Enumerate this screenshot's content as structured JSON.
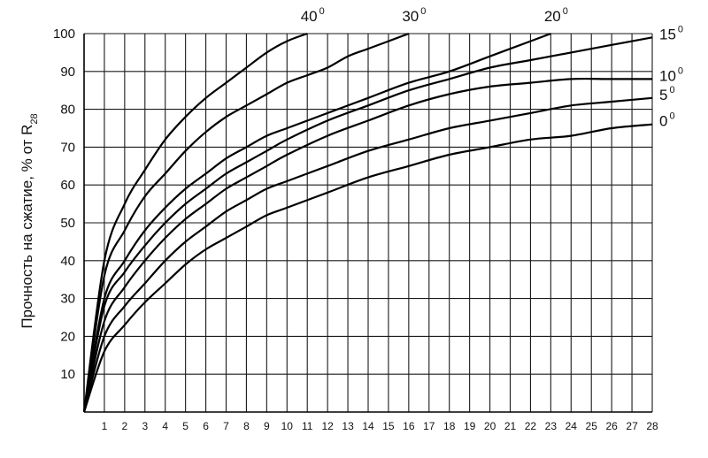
{
  "chart_data": {
    "type": "line",
    "title": "",
    "xlabel": "",
    "ylabel": "Прочность на сжатие, % от R",
    "ylabel_subscript": "28",
    "xlim": [
      0,
      28
    ],
    "ylim": [
      0,
      100
    ],
    "x_ticks": [
      "1",
      "2",
      "3",
      "4",
      "5",
      "6",
      "7",
      "8",
      "9",
      "10",
      "11",
      "12",
      "13",
      "14",
      "15",
      "16",
      "17",
      "18",
      "19",
      "20",
      "21",
      "22",
      "23",
      "24",
      "25",
      "26",
      "27",
      "28"
    ],
    "y_ticks": [
      "10",
      "20",
      "30",
      "40",
      "50",
      "60",
      "70",
      "80",
      "90",
      "100"
    ],
    "grid": true,
    "legend": "none",
    "series": [
      {
        "name": "40",
        "degree_mark": "0",
        "x": [
          0,
          1,
          2,
          3,
          4,
          5,
          6,
          7,
          8,
          9,
          10,
          11
        ],
        "y": [
          0,
          40,
          55,
          64,
          72,
          78,
          83,
          87,
          91,
          95,
          98,
          100
        ]
      },
      {
        "name": "30",
        "degree_mark": "0",
        "x": [
          0,
          1,
          2,
          3,
          4,
          5,
          6,
          7,
          8,
          9,
          10,
          11,
          12,
          13,
          14,
          15,
          16
        ],
        "y": [
          0,
          36,
          48,
          57,
          63,
          69,
          74,
          78,
          81,
          84,
          87,
          89,
          91,
          94,
          96,
          98,
          100
        ]
      },
      {
        "name": "20",
        "degree_mark": "0",
        "x": [
          0,
          1,
          2,
          3,
          4,
          5,
          6,
          7,
          8,
          9,
          10,
          12,
          14,
          16,
          18,
          20,
          22,
          23
        ],
        "y": [
          0,
          30,
          40,
          48,
          54,
          59,
          63,
          67,
          70,
          73,
          75,
          79,
          83,
          87,
          90,
          94,
          98,
          100
        ]
      },
      {
        "name": "15",
        "degree_mark": "0",
        "x": [
          0,
          1,
          2,
          3,
          4,
          5,
          6,
          7,
          8,
          9,
          10,
          12,
          14,
          16,
          18,
          20,
          22,
          24,
          26,
          28
        ],
        "y": [
          0,
          28,
          37,
          44,
          50,
          55,
          59,
          63,
          66,
          69,
          72,
          77,
          81,
          85,
          88,
          91,
          93,
          95,
          97,
          99
        ]
      },
      {
        "name": "10",
        "degree_mark": "0",
        "x": [
          0,
          1,
          2,
          3,
          4,
          5,
          6,
          7,
          8,
          9,
          10,
          12,
          14,
          16,
          18,
          20,
          22,
          24,
          26,
          28
        ],
        "y": [
          0,
          24,
          33,
          40,
          46,
          51,
          55,
          59,
          62,
          65,
          68,
          73,
          77,
          81,
          84,
          86,
          87,
          88,
          88,
          88
        ]
      },
      {
        "name": "5",
        "degree_mark": "0",
        "x": [
          0,
          1,
          2,
          3,
          4,
          5,
          6,
          7,
          8,
          9,
          10,
          12,
          14,
          16,
          18,
          20,
          22,
          24,
          26,
          28
        ],
        "y": [
          0,
          20,
          28,
          34,
          40,
          45,
          49,
          53,
          56,
          59,
          61,
          65,
          69,
          72,
          75,
          77,
          79,
          81,
          82,
          83
        ]
      },
      {
        "name": "0",
        "degree_mark": "0",
        "x": [
          0,
          1,
          2,
          3,
          4,
          5,
          6,
          7,
          8,
          9,
          10,
          12,
          14,
          16,
          18,
          20,
          22,
          24,
          26,
          28
        ],
        "y": [
          0,
          16,
          23,
          29,
          34,
          39,
          43,
          46,
          49,
          52,
          54,
          58,
          62,
          65,
          68,
          70,
          72,
          73,
          75,
          76
        ]
      }
    ]
  }
}
